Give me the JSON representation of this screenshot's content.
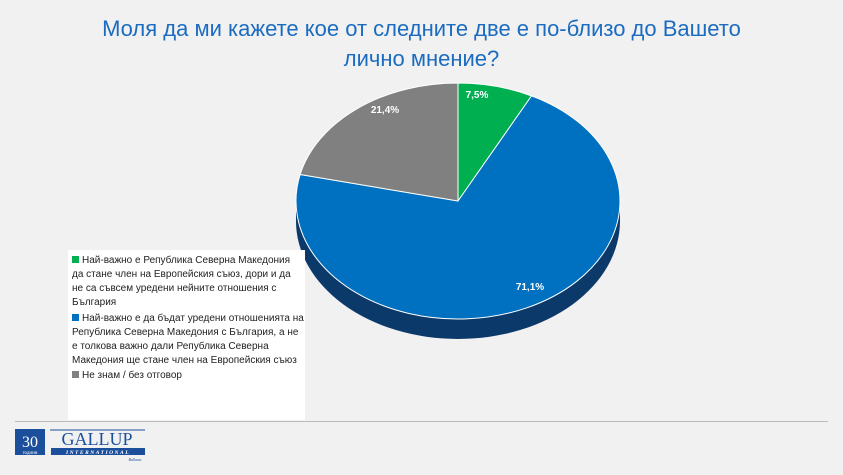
{
  "chart_data": {
    "type": "pie",
    "title": "Моля да ми кажете кое от следните две е по-близо до Вашето лично мнение?",
    "title_lines": [
      "Моля да ми кажете кое от следните две е по-близо до Вашето",
      "лично мнение?"
    ],
    "slices": [
      {
        "label": "Най-важно е Република Северна Македония да стане член на Европейския съюз, дори и да не са съвсем уредени нейните отношения с България",
        "value": 7.5,
        "value_label": "7,5%",
        "color": "#00b050"
      },
      {
        "label": "Най-важно е да бъдат уредени отношенията на Република Северна Македония с България, а не е толкова важно дали Република Северна Македония ще стане член на Европейския съюз",
        "value": 71.1,
        "value_label": "71,1%",
        "color": "#0070c0",
        "side": "#0b3a6a"
      },
      {
        "label": "Не знам / без отговор",
        "value": 21.4,
        "value_label": "21,4%",
        "color": "#808080"
      }
    ],
    "legend_position": "left"
  },
  "logo": {
    "years": "30",
    "years_sub": "години",
    "brand": "GALLUP",
    "sub": "INTERNATIONAL",
    "region": "Balkans"
  }
}
